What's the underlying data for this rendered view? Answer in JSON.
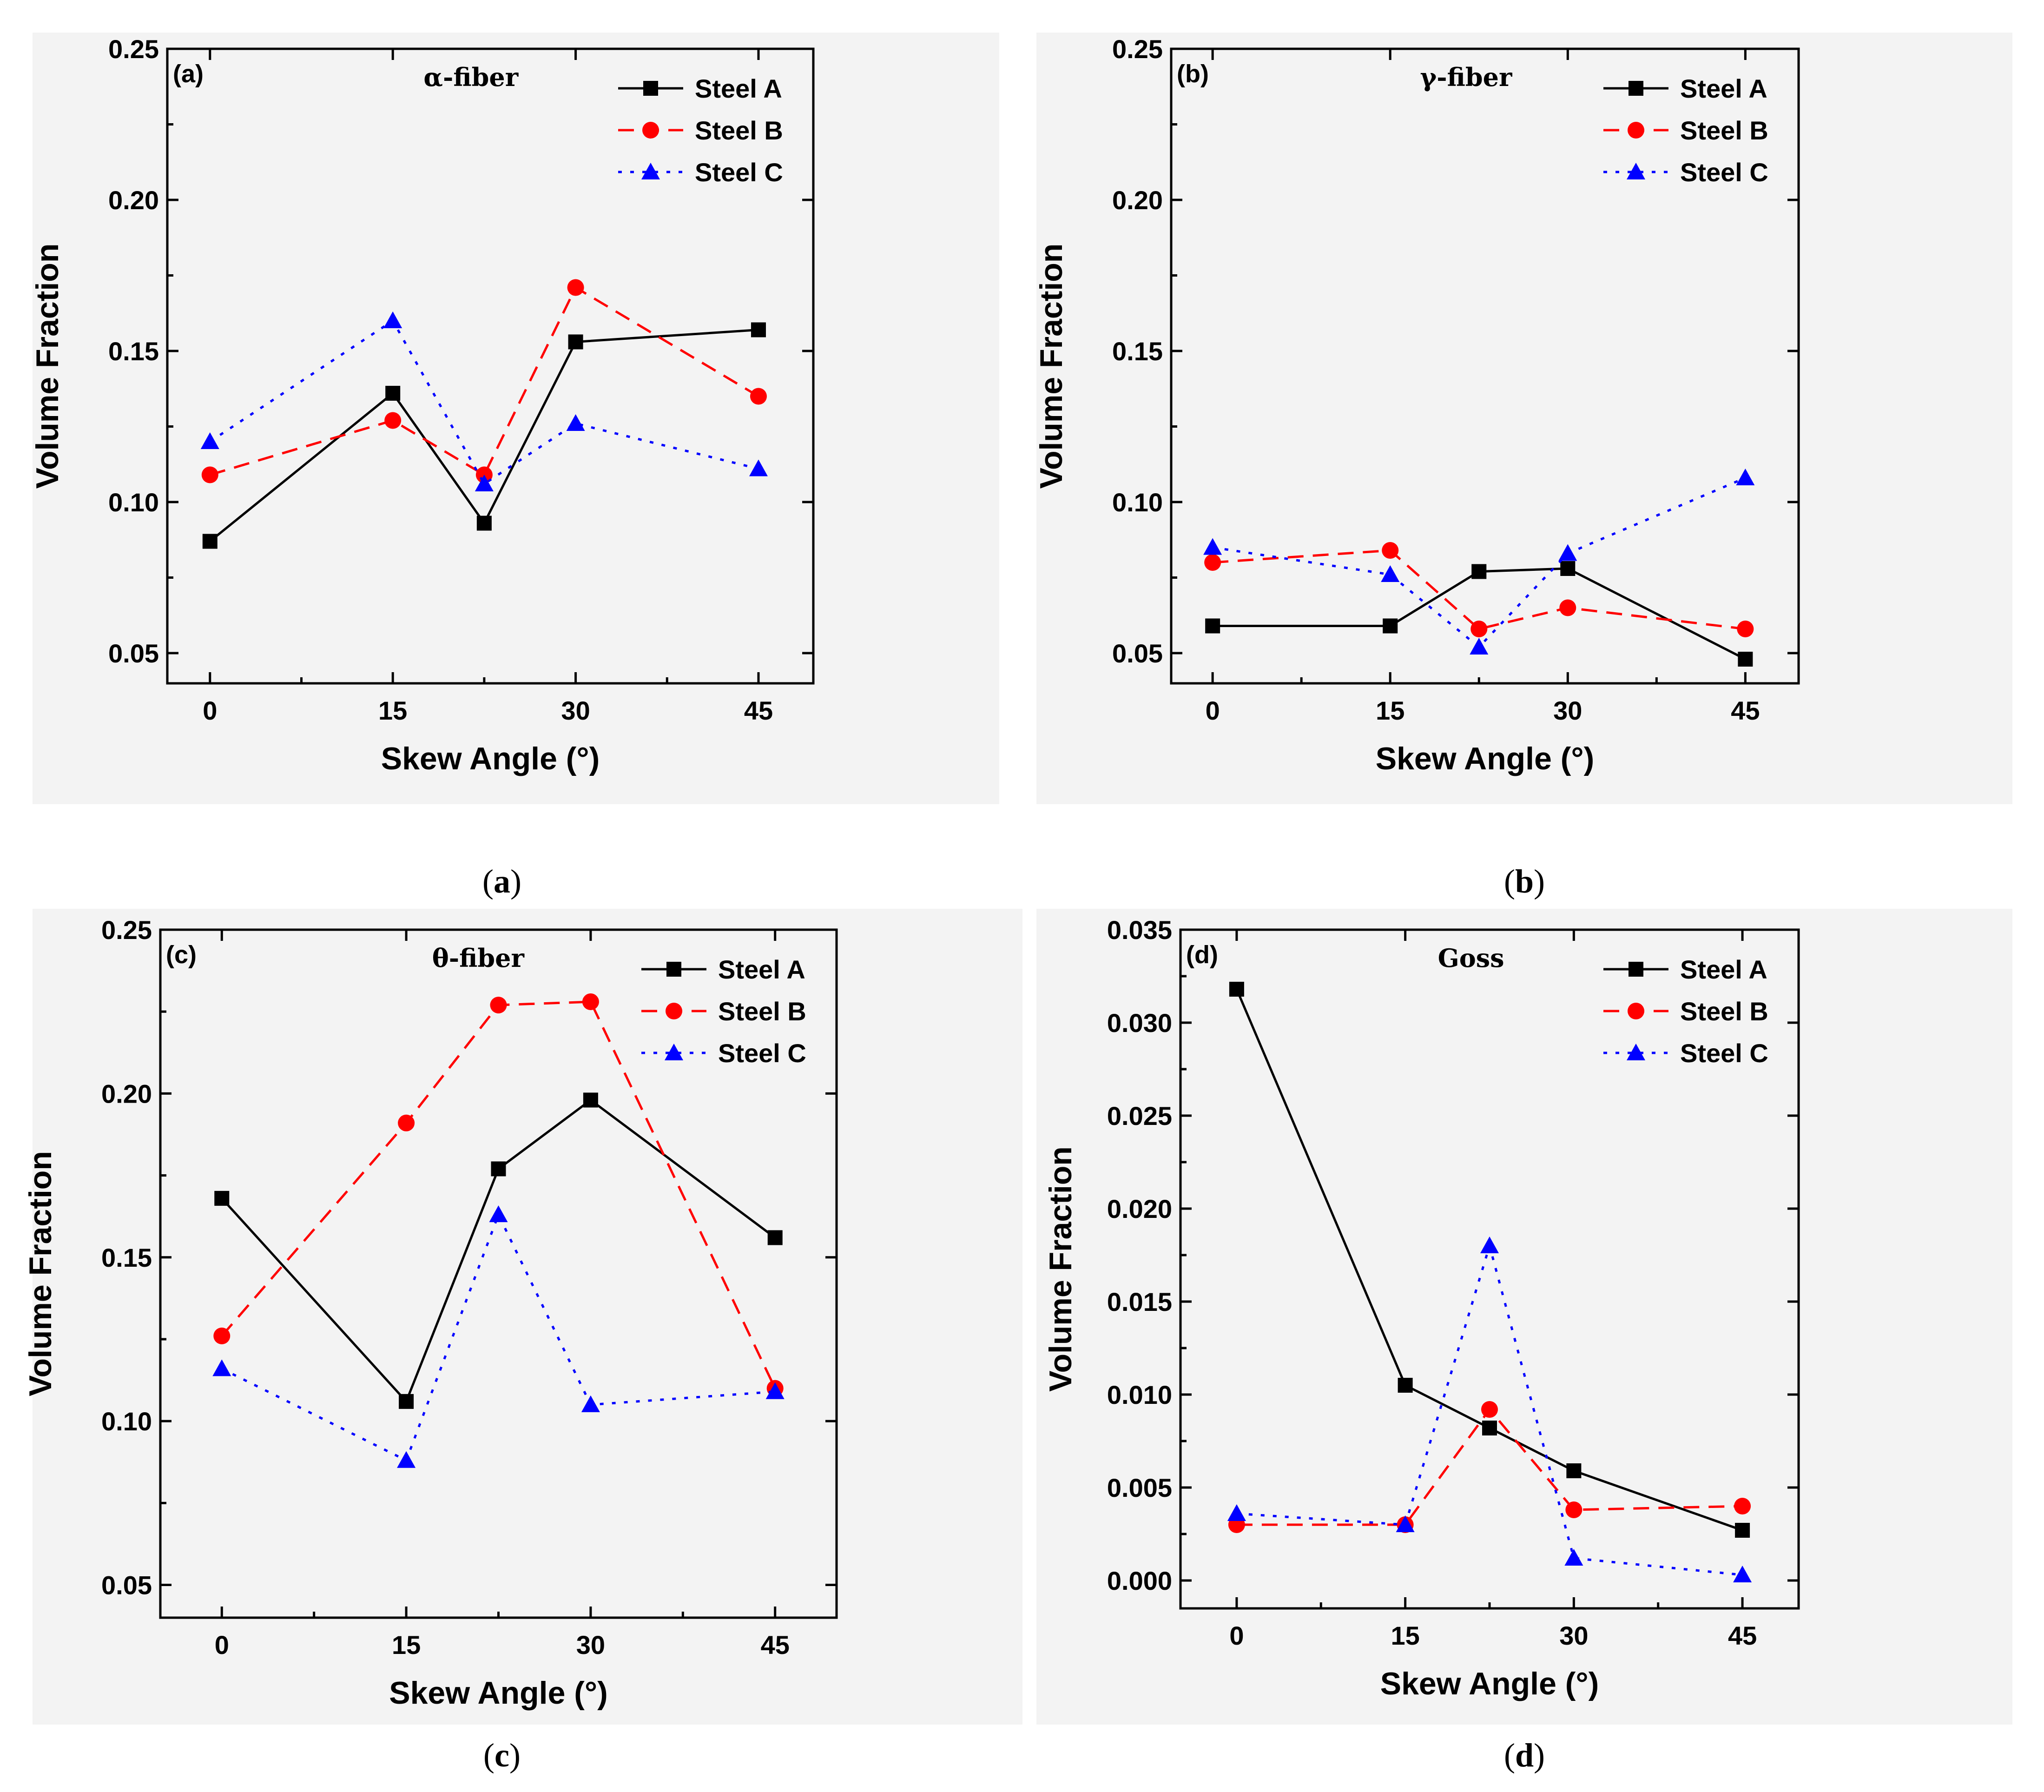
{
  "series_styles": {
    "Steel A": {
      "color": "#000000",
      "dash": "",
      "marker": "square"
    },
    "Steel B": {
      "color": "#ff0000",
      "dash": "34 20",
      "marker": "circle"
    },
    "Steel C": {
      "color": "#0000ff",
      "dash": "8 18",
      "marker": "triangle"
    }
  },
  "chart_data": [
    {
      "type": "line",
      "panel": "(a)",
      "title": "α-fiber",
      "caption_letter": "a",
      "xlabel": "Skew Angle (°)",
      "ylabel": "Volume Fraction",
      "xlim": [
        -3.5,
        49.5
      ],
      "ylim": [
        0.04,
        0.25
      ],
      "xticks": [
        0,
        15,
        30,
        45
      ],
      "xtick_labels": [
        "0",
        "15",
        "30",
        "45"
      ],
      "yticks": [
        0.05,
        0.1,
        0.15,
        0.2,
        0.25
      ],
      "ytick_labels": [
        "0.05",
        "0.10",
        "0.15",
        "0.20",
        "0.25"
      ],
      "x": [
        0,
        15,
        22.5,
        30,
        45
      ],
      "series": [
        {
          "name": "Steel A",
          "values": [
            0.087,
            0.136,
            0.093,
            0.153,
            0.157
          ]
        },
        {
          "name": "Steel B",
          "values": [
            0.109,
            0.127,
            0.109,
            0.171,
            0.135
          ]
        },
        {
          "name": "Steel C",
          "values": [
            0.12,
            0.16,
            0.106,
            0.126,
            0.111
          ]
        }
      ]
    },
    {
      "type": "line",
      "panel": "(b)",
      "title": "γ-fiber",
      "caption_letter": "b",
      "xlabel": "Skew Angle (°)",
      "ylabel": "Volume Fraction",
      "xlim": [
        -3.5,
        49.5
      ],
      "ylim": [
        0.04,
        0.25
      ],
      "xticks": [
        0,
        15,
        30,
        45
      ],
      "xtick_labels": [
        "0",
        "15",
        "30",
        "45"
      ],
      "yticks": [
        0.05,
        0.1,
        0.15,
        0.2,
        0.25
      ],
      "ytick_labels": [
        "0.05",
        "0.10",
        "0.15",
        "0.20",
        "0.25"
      ],
      "x": [
        0,
        15,
        22.5,
        30,
        45
      ],
      "series": [
        {
          "name": "Steel A",
          "values": [
            0.059,
            0.059,
            0.077,
            0.078,
            0.048
          ]
        },
        {
          "name": "Steel B",
          "values": [
            0.08,
            0.084,
            0.058,
            0.065,
            0.058
          ]
        },
        {
          "name": "Steel C",
          "values": [
            0.085,
            0.076,
            0.052,
            0.083,
            0.108
          ]
        }
      ]
    },
    {
      "type": "line",
      "panel": "(c)",
      "title": "θ-fiber",
      "caption_letter": "c",
      "xlabel": "Skew Angle (°)",
      "ylabel": "Volume Fraction",
      "xlim": [
        -5,
        50
      ],
      "ylim": [
        0.04,
        0.25
      ],
      "xticks": [
        0,
        15,
        30,
        45
      ],
      "xtick_labels": [
        "0",
        "15",
        "30",
        "45"
      ],
      "yticks": [
        0.05,
        0.1,
        0.15,
        0.2,
        0.25
      ],
      "ytick_labels": [
        "0.05",
        "0.10",
        "0.15",
        "0.20",
        "0.25"
      ],
      "x": [
        0,
        15,
        22.5,
        30,
        45
      ],
      "series": [
        {
          "name": "Steel A",
          "values": [
            0.168,
            0.106,
            0.177,
            0.198,
            0.156
          ]
        },
        {
          "name": "Steel B",
          "values": [
            0.126,
            0.191,
            0.227,
            0.228,
            0.11
          ]
        },
        {
          "name": "Steel C",
          "values": [
            0.116,
            0.088,
            0.163,
            0.105,
            0.109
          ]
        }
      ]
    },
    {
      "type": "line",
      "panel": "(d)",
      "title": "Goss",
      "caption_letter": "d",
      "xlabel": "Skew Angle (°)",
      "ylabel": "Volume Fraction",
      "xlim": [
        -5,
        50
      ],
      "ylim": [
        -0.0015,
        0.035
      ],
      "xticks": [
        0,
        15,
        30,
        45
      ],
      "xtick_labels": [
        "0",
        "15",
        "30",
        "45"
      ],
      "yticks": [
        0.0,
        0.005,
        0.01,
        0.015,
        0.02,
        0.025,
        0.03,
        0.035
      ],
      "ytick_labels": [
        "0.000",
        "0.005",
        "0.010",
        "0.015",
        "0.020",
        "0.025",
        "0.030",
        "0.035"
      ],
      "x": [
        0,
        15,
        22.5,
        30,
        45
      ],
      "series": [
        {
          "name": "Steel A",
          "values": [
            0.0318,
            0.0105,
            0.0082,
            0.0059,
            0.0027
          ]
        },
        {
          "name": "Steel B",
          "values": [
            0.003,
            0.003,
            0.0092,
            0.0038,
            0.004
          ]
        },
        {
          "name": "Steel C",
          "values": [
            0.0036,
            0.003,
            0.018,
            0.0012,
            0.0003
          ]
        }
      ]
    }
  ]
}
